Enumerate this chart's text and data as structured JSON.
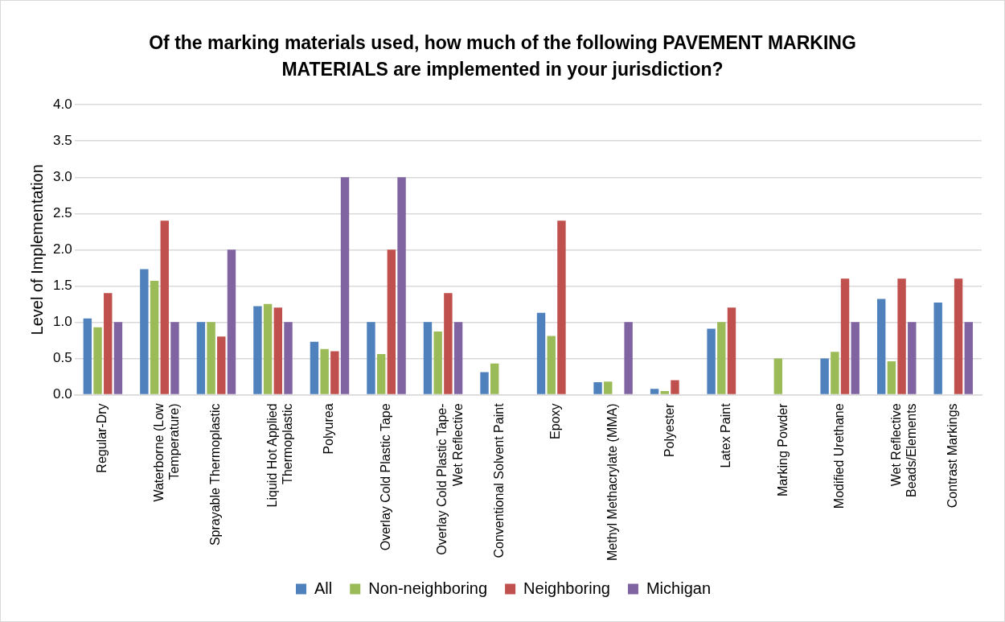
{
  "chart_data": {
    "type": "bar",
    "title": "Of the marking materials used, how much of the following PAVEMENT MARKING MATERIALS are implemented in your jurisdiction?",
    "ylabel": "Level of Implementation",
    "categories": [
      "Regular-Dry",
      "Waterborne (Low Temperature)",
      "Sprayable Thermoplastic",
      "Liquid Hot Applied Thermoplastic",
      "Polyurea",
      "Overlay Cold Plastic Tape",
      "Overlay Cold Plastic Tape-Wet Reflective",
      "Conventional Solvent Paint",
      "Epoxy",
      "Methyl Methacrylate (MMA)",
      "Polyester",
      "Latex Paint",
      "Marking Powder",
      "Modified Urethane",
      "Wet Reflective Beads/Elements",
      "Contrast Markings"
    ],
    "series": [
      {
        "name": "All",
        "color": "#4f81bd",
        "values": [
          1.05,
          1.73,
          1.0,
          1.22,
          0.73,
          1.0,
          1.0,
          0.31,
          1.13,
          0.17,
          0.08,
          0.91,
          null,
          0.5,
          1.32,
          1.27
        ]
      },
      {
        "name": "Non-neighboring",
        "color": "#9bbb59",
        "values": [
          0.93,
          1.57,
          1.0,
          1.25,
          0.63,
          0.56,
          0.87,
          0.43,
          0.81,
          0.18,
          0.05,
          1.0,
          0.5,
          0.59,
          0.46,
          null
        ]
      },
      {
        "name": "Neighboring",
        "color": "#c0504d",
        "values": [
          1.4,
          2.4,
          0.8,
          1.2,
          0.6,
          2.0,
          1.4,
          null,
          2.4,
          null,
          0.2,
          1.2,
          null,
          1.6,
          1.6,
          1.6
        ]
      },
      {
        "name": "Michigan",
        "color": "#8064a2",
        "values": [
          1.0,
          1.0,
          2.0,
          1.0,
          3.0,
          3.0,
          1.0,
          null,
          null,
          1.0,
          null,
          null,
          null,
          1.0,
          1.0,
          1.0
        ]
      }
    ],
    "ylim": [
      0,
      4
    ],
    "yticks": [
      {
        "value": 0,
        "label": "0.0"
      },
      {
        "value": 0.5,
        "label": "0.5"
      },
      {
        "value": 1,
        "label": "1.0"
      },
      {
        "value": 1.5,
        "label": "1.5"
      },
      {
        "value": 2,
        "label": "2.0"
      },
      {
        "value": 2.5,
        "label": "2.5"
      },
      {
        "value": 3,
        "label": "3.0"
      },
      {
        "value": 3.5,
        "label": "3.5"
      },
      {
        "value": 4,
        "label": "4.0"
      }
    ],
    "grid": "y",
    "legend": "bottom"
  }
}
